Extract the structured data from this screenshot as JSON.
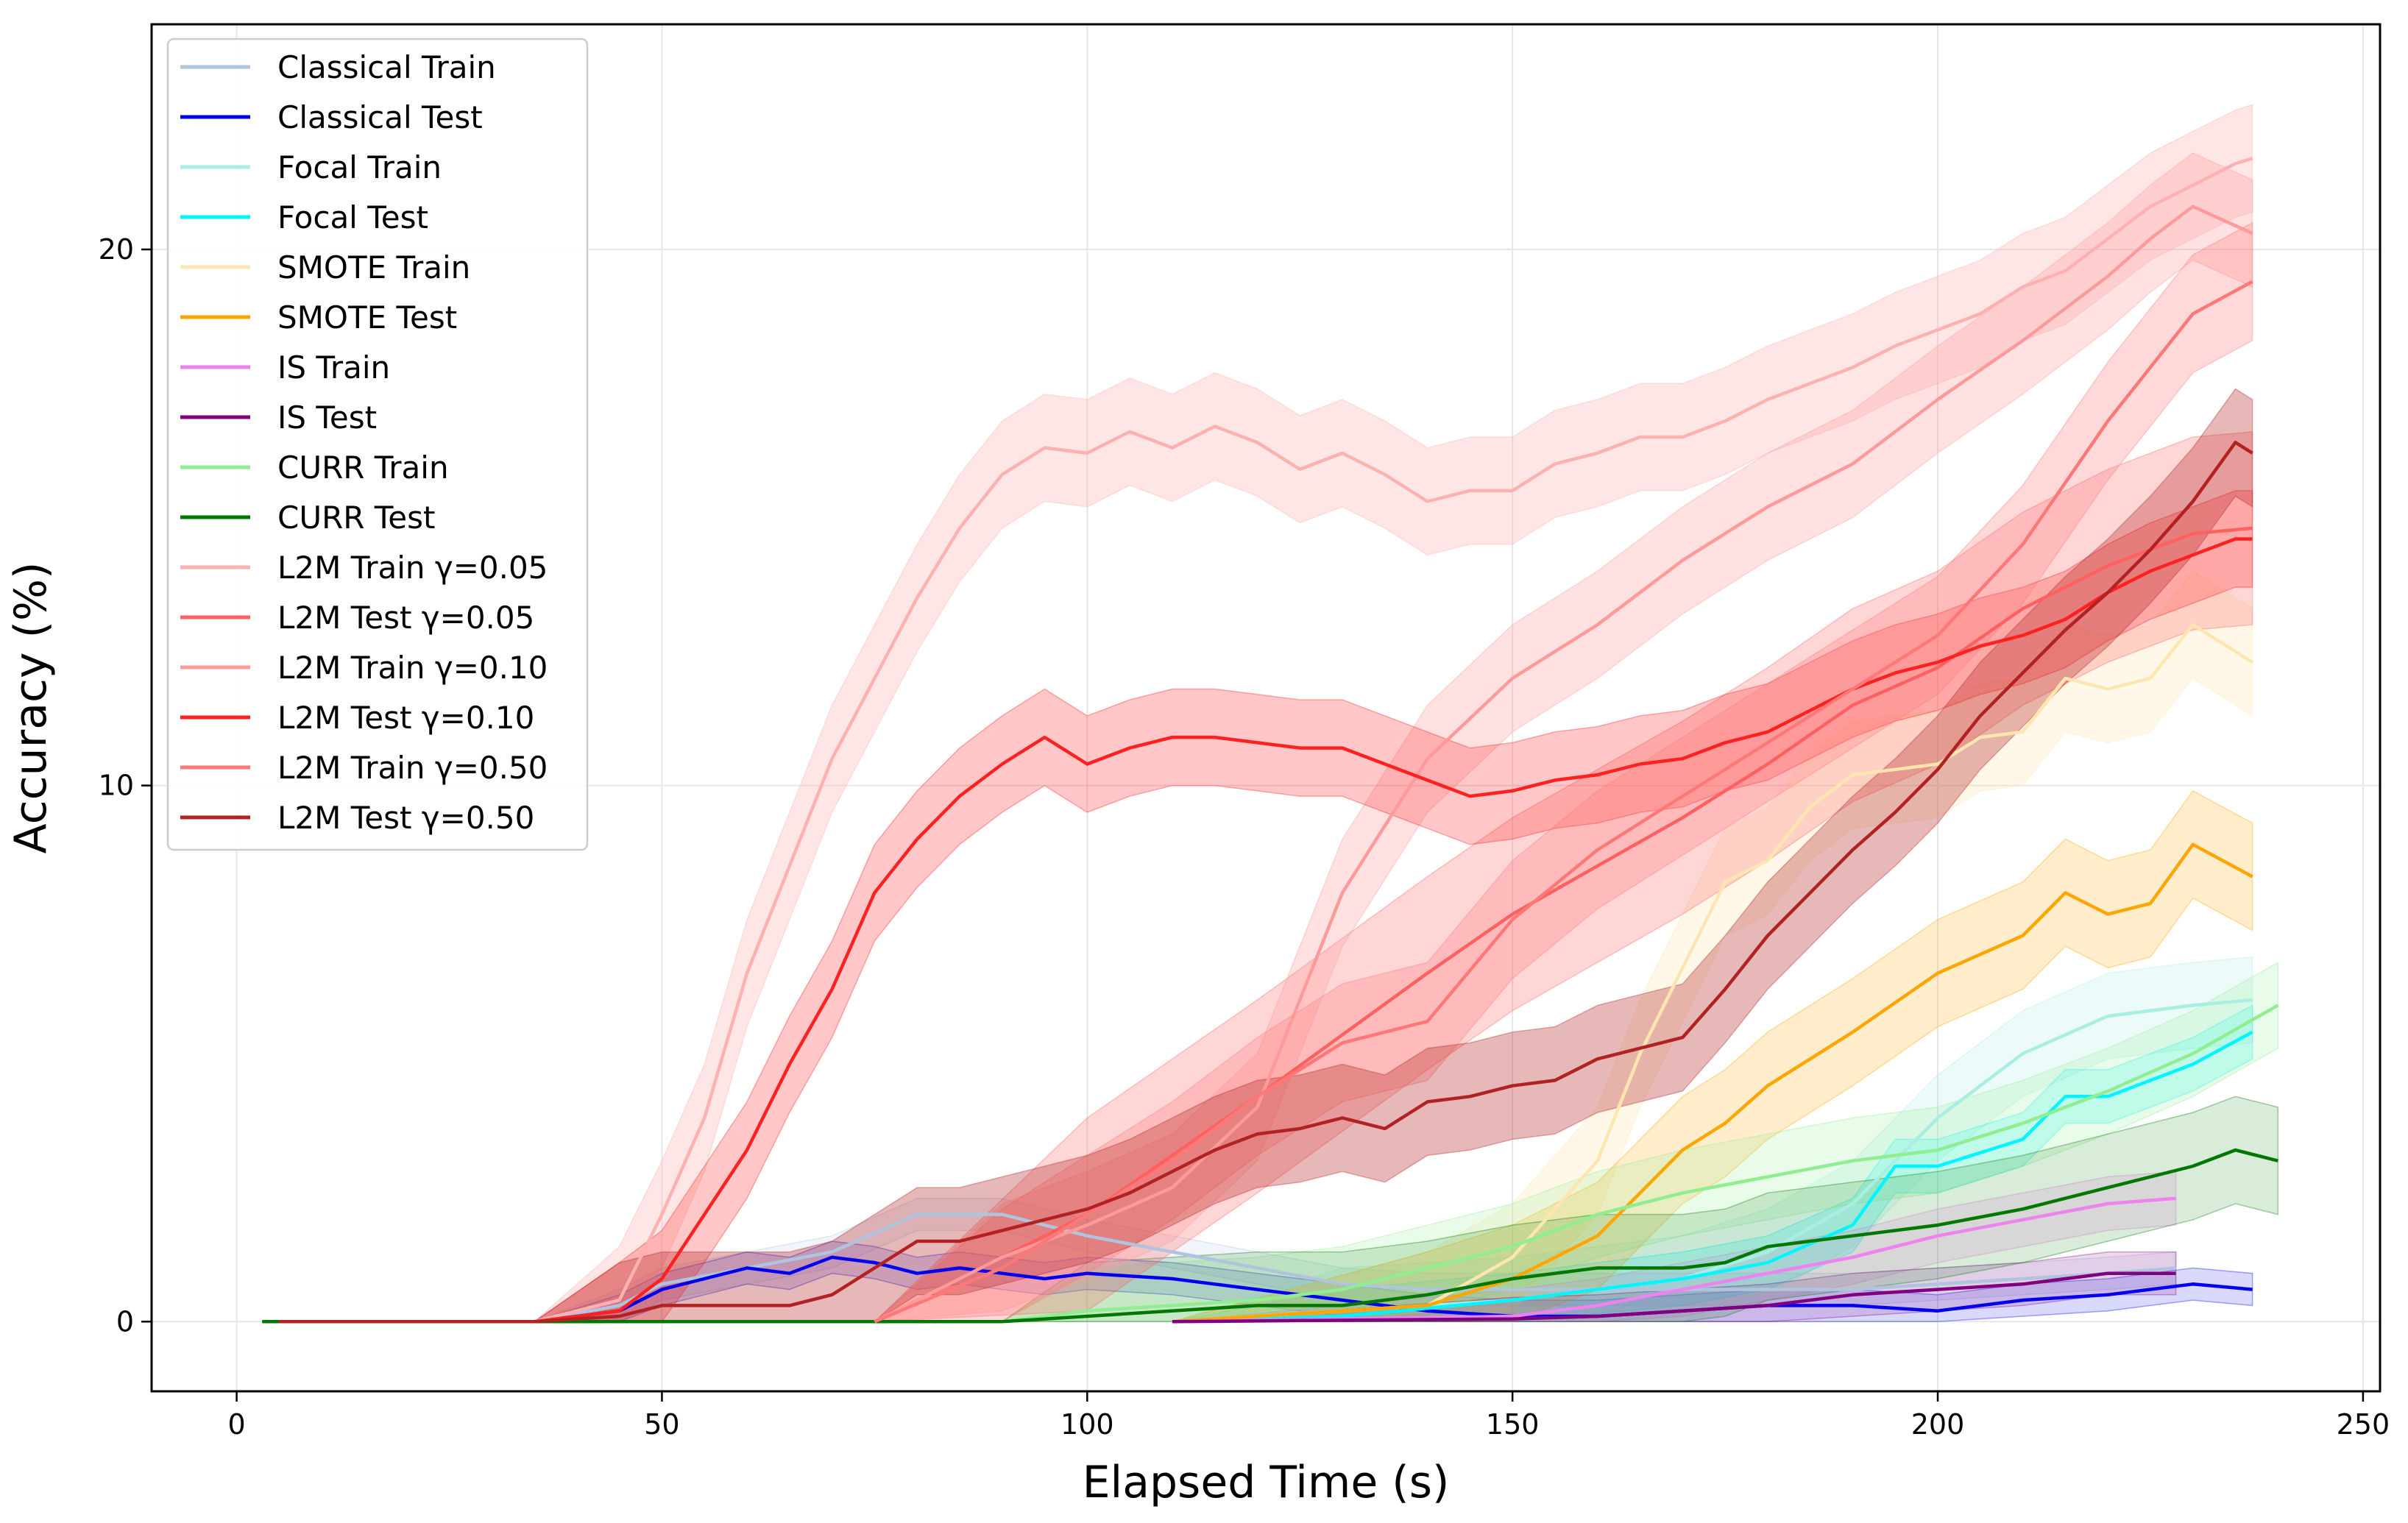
{
  "chart_data": {
    "type": "line",
    "title": "",
    "xlabel": "Elapsed Time (s)",
    "ylabel": "Accuracy (%)",
    "xlim": [
      -10,
      252
    ],
    "ylim": [
      -1.3,
      24.2
    ],
    "xticks": [
      0,
      50,
      100,
      150,
      200,
      250
    ],
    "yticks": [
      0,
      10,
      20
    ],
    "grid": true,
    "legend_position": "top-left",
    "series": [
      {
        "name": "Classical Train",
        "color": "#b0c4de",
        "band": 0.3,
        "bandOpacity": 0.18,
        "x": [
          5,
          35,
          45,
          50,
          60,
          70,
          80,
          90,
          100,
          110,
          120,
          130,
          140,
          150,
          160,
          170,
          180,
          190,
          200,
          210,
          220,
          228
        ],
        "y": [
          0,
          0,
          0.3,
          0.7,
          1.0,
          1.3,
          2.0,
          2.0,
          1.6,
          1.3,
          1.0,
          0.7,
          0.6,
          0.6,
          0.6,
          0.6,
          0.6,
          0.6,
          0.7,
          0.8,
          0.9,
          1.0
        ]
      },
      {
        "name": "Classical Test",
        "color": "#0000ee",
        "band": 0.3,
        "bandOpacity": 0.15,
        "x": [
          5,
          35,
          45,
          50,
          55,
          60,
          65,
          70,
          75,
          80,
          85,
          90,
          95,
          100,
          110,
          120,
          125,
          130,
          140,
          150,
          160,
          170,
          180,
          190,
          200,
          210,
          220,
          230,
          237
        ],
        "y": [
          0,
          0,
          0.2,
          0.6,
          0.8,
          1.0,
          0.9,
          1.2,
          1.1,
          0.9,
          1.0,
          0.9,
          0.8,
          0.9,
          0.8,
          0.6,
          0.5,
          0.4,
          0.2,
          0.1,
          0.1,
          0.2,
          0.3,
          0.3,
          0.2,
          0.4,
          0.5,
          0.7,
          0.6
        ]
      },
      {
        "name": "Focal Train",
        "color": "#a8eee3",
        "band": 0.8,
        "bandOpacity": 0.22,
        "x": [
          110,
          130,
          150,
          170,
          180,
          190,
          200,
          210,
          220,
          230,
          237
        ],
        "y": [
          0,
          0.2,
          0.4,
          0.8,
          1.3,
          2.2,
          3.8,
          5.0,
          5.7,
          5.9,
          6.0
        ]
      },
      {
        "name": "Focal Test",
        "color": "#00f5ff",
        "band": 0.5,
        "bandOpacity": 0.2,
        "x": [
          110,
          130,
          150,
          170,
          180,
          190,
          195,
          200,
          210,
          215,
          220,
          230,
          237
        ],
        "y": [
          0,
          0.1,
          0.4,
          0.8,
          1.1,
          1.8,
          2.9,
          2.9,
          3.4,
          4.2,
          4.2,
          4.8,
          5.4
        ]
      },
      {
        "name": "SMOTE Train",
        "color": "#ffe6b0",
        "band": 1.0,
        "bandOpacity": 0.28,
        "x": [
          110,
          140,
          150,
          160,
          165,
          170,
          175,
          180,
          185,
          190,
          195,
          200,
          205,
          210,
          215,
          220,
          225,
          230,
          237
        ],
        "y": [
          0,
          0.3,
          1.2,
          3.0,
          5.0,
          6.6,
          8.2,
          8.6,
          9.6,
          10.2,
          10.3,
          10.4,
          10.9,
          11.0,
          12.0,
          11.8,
          12.0,
          13.0,
          12.3
        ]
      },
      {
        "name": "SMOTE Test",
        "color": "#ffa500",
        "band": 1.0,
        "bandOpacity": 0.2,
        "x": [
          110,
          140,
          150,
          160,
          165,
          170,
          175,
          180,
          190,
          200,
          210,
          215,
          220,
          225,
          230,
          237
        ],
        "y": [
          0,
          0.3,
          0.8,
          1.6,
          2.4,
          3.2,
          3.7,
          4.4,
          5.4,
          6.5,
          7.2,
          8.0,
          7.6,
          7.8,
          8.9,
          8.3
        ]
      },
      {
        "name": "IS Train",
        "color": "#ee82ee",
        "band": 0.5,
        "bandOpacity": 0.18,
        "x": [
          110,
          150,
          160,
          170,
          180,
          190,
          200,
          210,
          220,
          228
        ],
        "y": [
          0,
          0.1,
          0.3,
          0.6,
          0.9,
          1.2,
          1.6,
          1.9,
          2.2,
          2.3
        ]
      },
      {
        "name": "IS Test",
        "color": "#800080",
        "band": 0.4,
        "bandOpacity": 0.15,
        "x": [
          110,
          150,
          160,
          170,
          180,
          190,
          200,
          210,
          220,
          228
        ],
        "y": [
          0,
          0.05,
          0.1,
          0.2,
          0.3,
          0.5,
          0.6,
          0.7,
          0.9,
          0.9
        ]
      },
      {
        "name": "CURR Train",
        "color": "#90ee90",
        "band": 0.8,
        "bandOpacity": 0.2,
        "x": [
          90,
          100,
          120,
          130,
          140,
          150,
          160,
          170,
          180,
          190,
          200,
          210,
          220,
          230,
          240
        ],
        "y": [
          0,
          0.2,
          0.4,
          0.6,
          1.0,
          1.4,
          2.0,
          2.4,
          2.7,
          3.0,
          3.2,
          3.7,
          4.3,
          5.0,
          5.9
        ]
      },
      {
        "name": "CURR Test",
        "color": "#007700",
        "band": 1.0,
        "bandOpacity": 0.15,
        "x": [
          3,
          90,
          100,
          120,
          130,
          140,
          150,
          160,
          170,
          175,
          180,
          190,
          200,
          210,
          220,
          230,
          235,
          240
        ],
        "y": [
          0,
          0,
          0.1,
          0.3,
          0.3,
          0.5,
          0.8,
          1.0,
          1.0,
          1.1,
          1.4,
          1.6,
          1.8,
          2.1,
          2.5,
          2.9,
          3.2,
          3.0
        ]
      },
      {
        "name": "L2M Train γ=0.05",
        "color": "#ffb0b0",
        "band": 1.0,
        "bandOpacity": 0.32,
        "x": [
          5,
          35,
          45,
          50,
          55,
          60,
          65,
          70,
          75,
          80,
          85,
          90,
          95,
          100,
          105,
          110,
          115,
          120,
          125,
          130,
          135,
          140,
          145,
          150,
          155,
          160,
          165,
          170,
          175,
          180,
          185,
          190,
          195,
          200,
          205,
          210,
          215,
          220,
          225,
          230,
          235,
          237
        ],
        "y": [
          0,
          0,
          0.4,
          2.0,
          3.8,
          6.5,
          8.5,
          10.5,
          12.0,
          13.5,
          14.8,
          15.8,
          16.3,
          16.2,
          16.6,
          16.3,
          16.7,
          16.4,
          15.9,
          16.2,
          15.8,
          15.3,
          15.5,
          15.5,
          16.0,
          16.2,
          16.5,
          16.5,
          16.8,
          17.2,
          17.5,
          17.8,
          18.2,
          18.5,
          18.8,
          19.3,
          19.6,
          20.2,
          20.8,
          21.2,
          21.6,
          21.7
        ]
      },
      {
        "name": "L2M Test γ=0.05",
        "color": "#ff6060",
        "band": 1.8,
        "bandOpacity": 0.26,
        "x": [
          75,
          100,
          120,
          140,
          150,
          160,
          170,
          180,
          190,
          200,
          210,
          220,
          230,
          237
        ],
        "y": [
          0,
          2.0,
          4.2,
          6.5,
          7.6,
          8.5,
          9.4,
          10.4,
          11.5,
          12.2,
          13.3,
          14.1,
          14.7,
          14.8
        ]
      },
      {
        "name": "L2M Train γ=0.10",
        "color": "#ff9a9a",
        "band": 1.0,
        "bandOpacity": 0.3,
        "x": [
          75,
          90,
          100,
          110,
          120,
          125,
          130,
          140,
          150,
          160,
          170,
          180,
          190,
          200,
          210,
          220,
          225,
          230,
          237
        ],
        "y": [
          0,
          1.2,
          1.8,
          2.5,
          4.0,
          6.0,
          8.0,
          10.5,
          12.0,
          13.0,
          14.2,
          15.2,
          16.0,
          17.2,
          18.3,
          19.5,
          20.2,
          20.8,
          20.3
        ]
      },
      {
        "name": "L2M Test γ=0.10",
        "color": "#ff2020",
        "band": 0.9,
        "bandOpacity": 0.25,
        "x": [
          5,
          35,
          45,
          50,
          55,
          60,
          65,
          70,
          75,
          80,
          85,
          90,
          95,
          100,
          105,
          110,
          115,
          120,
          125,
          130,
          135,
          140,
          145,
          150,
          155,
          160,
          165,
          170,
          175,
          180,
          185,
          190,
          195,
          200,
          205,
          210,
          215,
          220,
          225,
          230,
          235,
          237
        ],
        "y": [
          0,
          0,
          0.2,
          0.8,
          2.0,
          3.2,
          4.8,
          6.2,
          8.0,
          9.0,
          9.8,
          10.4,
          10.9,
          10.4,
          10.7,
          10.9,
          10.9,
          10.8,
          10.7,
          10.7,
          10.4,
          10.1,
          9.8,
          9.9,
          10.1,
          10.2,
          10.4,
          10.5,
          10.8,
          11.0,
          11.4,
          11.8,
          12.1,
          12.3,
          12.6,
          12.8,
          13.1,
          13.6,
          14.0,
          14.3,
          14.6,
          14.6
        ]
      },
      {
        "name": "L2M Train γ=0.50",
        "color": "#ff7878",
        "band": 1.1,
        "bandOpacity": 0.28,
        "x": [
          75,
          90,
          100,
          110,
          120,
          130,
          140,
          150,
          160,
          170,
          180,
          190,
          200,
          210,
          220,
          230,
          237
        ],
        "y": [
          0,
          1.0,
          2.0,
          3.0,
          4.2,
          5.2,
          5.6,
          7.5,
          8.8,
          9.8,
          10.8,
          11.8,
          12.8,
          14.5,
          16.8,
          18.8,
          19.4
        ]
      },
      {
        "name": "L2M Test γ=0.50",
        "color": "#b22222",
        "band": 1.0,
        "bandOpacity": 0.32,
        "x": [
          5,
          35,
          45,
          50,
          55,
          60,
          65,
          70,
          75,
          80,
          85,
          90,
          95,
          100,
          105,
          110,
          115,
          120,
          125,
          130,
          135,
          140,
          145,
          150,
          155,
          160,
          165,
          170,
          175,
          180,
          185,
          190,
          195,
          200,
          205,
          210,
          215,
          220,
          225,
          230,
          235,
          237
        ],
        "y": [
          0,
          0,
          0.1,
          0.3,
          0.3,
          0.3,
          0.3,
          0.5,
          1.0,
          1.5,
          1.5,
          1.7,
          1.9,
          2.1,
          2.4,
          2.8,
          3.2,
          3.5,
          3.6,
          3.8,
          3.6,
          4.1,
          4.2,
          4.4,
          4.5,
          4.9,
          5.1,
          5.3,
          6.2,
          7.2,
          8.0,
          8.8,
          9.5,
          10.3,
          11.3,
          12.1,
          12.9,
          13.6,
          14.4,
          15.3,
          16.4,
          16.2
        ]
      }
    ]
  }
}
